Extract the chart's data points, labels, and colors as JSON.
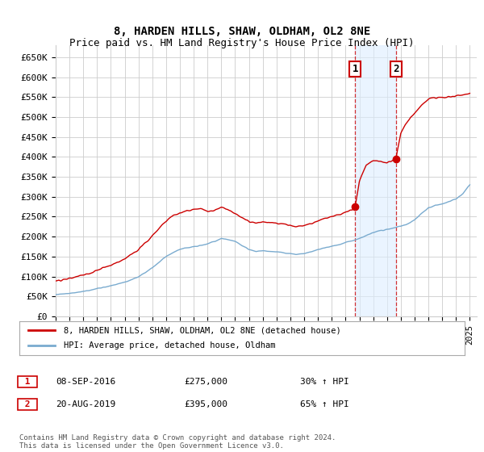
{
  "title": "8, HARDEN HILLS, SHAW, OLDHAM, OL2 8NE",
  "subtitle": "Price paid vs. HM Land Registry's House Price Index (HPI)",
  "ylabel_ticks": [
    "£0",
    "£50K",
    "£100K",
    "£150K",
    "£200K",
    "£250K",
    "£300K",
    "£350K",
    "£400K",
    "£450K",
    "£500K",
    "£550K",
    "£600K",
    "£650K"
  ],
  "ylim": [
    0,
    680000
  ],
  "ytick_vals": [
    0,
    50000,
    100000,
    150000,
    200000,
    250000,
    300000,
    350000,
    400000,
    450000,
    500000,
    550000,
    600000,
    650000
  ],
  "xlim_start": 1995.0,
  "xlim_end": 2025.5,
  "sale1_year": 2016.69,
  "sale1_price": 275000,
  "sale2_year": 2019.64,
  "sale2_price": 395000,
  "sale1_label": "1",
  "sale2_label": "2",
  "sale1_date": "08-SEP-2016",
  "sale1_amount": "£275,000",
  "sale1_hpi": "30% ↑ HPI",
  "sale2_date": "20-AUG-2019",
  "sale2_amount": "£395,000",
  "sale2_hpi": "65% ↑ HPI",
  "legend_line1": "8, HARDEN HILLS, SHAW, OLDHAM, OL2 8NE (detached house)",
  "legend_line2": "HPI: Average price, detached house, Oldham",
  "footer": "Contains HM Land Registry data © Crown copyright and database right 2024.\nThis data is licensed under the Open Government Licence v3.0.",
  "line_color_red": "#cc0000",
  "line_color_blue": "#7aabcf",
  "bg_color": "#ffffff",
  "grid_color": "#cccccc",
  "shade_color": "#ddeeff",
  "hpi_years": [
    1995,
    1995.5,
    1996,
    1996.5,
    1997,
    1997.5,
    1998,
    1998.5,
    1999,
    1999.5,
    2000,
    2000.5,
    2001,
    2001.5,
    2002,
    2002.5,
    2003,
    2003.5,
    2004,
    2004.5,
    2005,
    2005.5,
    2006,
    2006.5,
    2007,
    2007.5,
    2008,
    2008.5,
    2009,
    2009.5,
    2010,
    2010.5,
    2011,
    2011.5,
    2012,
    2012.5,
    2013,
    2013.5,
    2014,
    2014.5,
    2015,
    2015.5,
    2016,
    2016.5,
    2017,
    2017.5,
    2018,
    2018.5,
    2019,
    2019.5,
    2020,
    2020.5,
    2021,
    2021.5,
    2022,
    2022.5,
    2023,
    2023.5,
    2024,
    2024.5,
    2025
  ],
  "hpi_vals": [
    55000,
    56000,
    57500,
    60000,
    63000,
    66000,
    70000,
    73000,
    77000,
    81000,
    86000,
    92000,
    100000,
    110000,
    122000,
    136000,
    150000,
    160000,
    168000,
    172000,
    175000,
    178000,
    182000,
    188000,
    195000,
    193000,
    188000,
    178000,
    168000,
    163000,
    165000,
    163000,
    162000,
    160000,
    157000,
    156000,
    158000,
    162000,
    167000,
    172000,
    176000,
    180000,
    185000,
    190000,
    196000,
    203000,
    210000,
    215000,
    218000,
    222000,
    226000,
    232000,
    242000,
    258000,
    272000,
    278000,
    282000,
    288000,
    295000,
    308000,
    330000
  ],
  "red_years": [
    1995,
    1995.5,
    1996,
    1996.5,
    1997,
    1997.5,
    1998,
    1998.5,
    1999,
    1999.5,
    2000,
    2000.5,
    2001,
    2001.5,
    2002,
    2002.5,
    2003,
    2003.5,
    2004,
    2004.5,
    2005,
    2005.5,
    2006,
    2006.5,
    2007,
    2007.5,
    2008,
    2008.5,
    2009,
    2009.5,
    2010,
    2010.5,
    2011,
    2011.5,
    2012,
    2012.5,
    2013,
    2013.5,
    2014,
    2014.5,
    2015,
    2015.5,
    2016,
    2016.5,
    2016.69,
    2017,
    2017.5,
    2018,
    2018.5,
    2019,
    2019.64,
    2020,
    2020.5,
    2021,
    2021.5,
    2022,
    2022.5,
    2023,
    2023.5,
    2024,
    2024.5,
    2025
  ],
  "red_vals": [
    90000,
    92000,
    95000,
    99000,
    104000,
    109000,
    116000,
    122000,
    128000,
    136000,
    144000,
    155000,
    168000,
    184000,
    202000,
    222000,
    240000,
    253000,
    260000,
    266000,
    268000,
    270000,
    264000,
    265000,
    275000,
    268000,
    258000,
    248000,
    238000,
    234000,
    238000,
    235000,
    234000,
    232000,
    228000,
    226000,
    229000,
    234000,
    240000,
    246000,
    250000,
    255000,
    261000,
    268000,
    275000,
    340000,
    380000,
    390000,
    388000,
    385000,
    395000,
    460000,
    490000,
    510000,
    530000,
    545000,
    548000,
    548000,
    550000,
    552000,
    556000,
    560000
  ]
}
